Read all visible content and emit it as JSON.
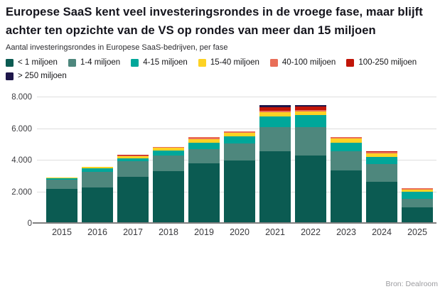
{
  "header": {
    "title": "Europese SaaS kent veel investeringsrondes in de vroege fase, maar blijft achter ten opzichte van de VS op rondes van meer dan 15 miljoen",
    "subtitle": "Aantal investeringsrondes in Europese SaaS-bedrijven, per fase"
  },
  "footer": {
    "source": "Bron: Dealroom"
  },
  "chart_data": {
    "type": "bar",
    "stacked": true,
    "title": "Europese SaaS kent veel investeringsrondes in de vroege fase, maar blijft achter ten opzichte van de VS op rondes van meer dan 15 miljoen",
    "subtitle": "Aantal investeringsrondes in Europese SaaS-bedrijven, per fase",
    "xlabel": "",
    "ylabel": "",
    "ylim": [
      0,
      8000
    ],
    "grid": true,
    "legend_position": "top",
    "yticks": [
      {
        "value": 0,
        "label": "0"
      },
      {
        "value": 2000,
        "label": "2.000"
      },
      {
        "value": 4000,
        "label": "4.000"
      },
      {
        "value": 6000,
        "label": "6.000"
      },
      {
        "value": 8000,
        "label": "8.000"
      }
    ],
    "categories": [
      "2015",
      "2016",
      "2017",
      "2018",
      "2019",
      "2020",
      "2021",
      "2022",
      "2023",
      "2024",
      "2025"
    ],
    "series": [
      {
        "name": "< 1 miljoen",
        "color": "#0b5b52",
        "values": [
          2220,
          2300,
          2980,
          3310,
          3830,
          4010,
          4600,
          4340,
          3380,
          2640,
          1040
        ]
      },
      {
        "name": "1-4 miljoen",
        "color": "#4e877d",
        "values": [
          560,
          1000,
          1000,
          1000,
          900,
          1060,
          1500,
          1790,
          1210,
          1120,
          550
        ]
      },
      {
        "name": "4-15 miljoen",
        "color": "#00a79a",
        "values": [
          90,
          210,
          180,
          340,
          420,
          450,
          700,
          750,
          550,
          490,
          420
        ]
      },
      {
        "name": "15-40 miljoen",
        "color": "#fdd224",
        "values": [
          70,
          70,
          110,
          160,
          220,
          220,
          270,
          250,
          240,
          210,
          150
        ]
      },
      {
        "name": "40-100 miljoen",
        "color": "#e96e58",
        "values": [
          0,
          0,
          40,
          60,
          100,
          110,
          80,
          80,
          100,
          80,
          100
        ]
      },
      {
        "name": "100-250 miljoen",
        "color": "#c11508",
        "values": [
          0,
          0,
          40,
          0,
          0,
          0,
          250,
          230,
          0,
          40,
          0
        ]
      },
      {
        "name": "> 250 miljoen",
        "color": "#1e164a",
        "values": [
          0,
          0,
          0,
          0,
          0,
          0,
          120,
          90,
          0,
          0,
          0
        ]
      }
    ]
  }
}
